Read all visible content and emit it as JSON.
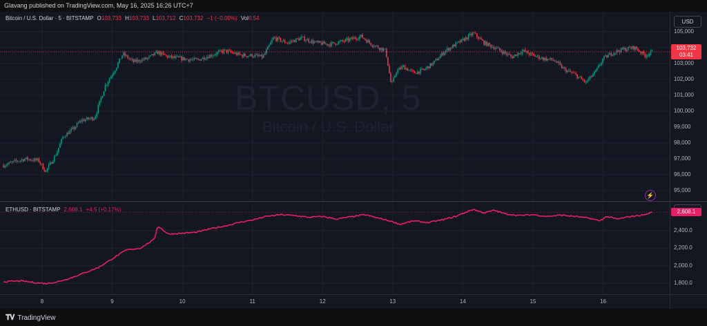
{
  "published_text": "Glavang published on TradingView.com, May 16, 2025 16:26 UTC+7",
  "watermark": {
    "symbol": "BTCUSD, 5",
    "description": "Bitcoin / U.S. Dollar"
  },
  "btc_legend": {
    "name": "Bitcoin / U.S. Dollar · 5 · BITSTAMP",
    "o_label": "O",
    "o": "103,733",
    "h_label": "H",
    "h": "103,733",
    "l_label": "L",
    "l": "103,712",
    "c_label": "C",
    "c": "103,732",
    "change": "−1 (−0.00%)",
    "vol_label": "Vol",
    "vol": "0.54"
  },
  "eth_legend": {
    "name": "ETHUSD · BITSTAMP",
    "last": "2,608.1",
    "change": "+4.5 (+0.17%)"
  },
  "currency_button": "USD",
  "btc_price_tag": {
    "price": "103,732",
    "countdown": "03:41"
  },
  "eth_price_tag": "2,608.1",
  "footer_brand": "TradingView",
  "colors": {
    "up": "#089981",
    "down": "#f23645",
    "eth_line": "#e91e63",
    "background": "#131722"
  },
  "chart_data": [
    {
      "type": "candlestick",
      "title": "Bitcoin / U.S. Dollar · 5 · BITSTAMP",
      "x_ticks": [
        "8",
        "9",
        "10",
        "11",
        "12",
        "13",
        "14",
        "15",
        "16"
      ],
      "y_ticks": [
        "105,000",
        "104,000",
        "103,000",
        "102,000",
        "101,000",
        "100,000",
        "99,000",
        "98,000",
        "97,000",
        "96,000",
        "95,000"
      ],
      "ylim": [
        94700,
        105900
      ],
      "last_price": 103732,
      "x": [
        7.45,
        7.75,
        7.95,
        8.05,
        8.2,
        8.3,
        8.45,
        8.55,
        8.75,
        8.9,
        9.05,
        9.15,
        9.3,
        9.5,
        9.65,
        9.8,
        10.0,
        10.2,
        10.4,
        10.6,
        10.85,
        11.0,
        11.15,
        11.3,
        11.5,
        11.7,
        11.9,
        12.1,
        12.3,
        12.55,
        12.7,
        12.9,
        12.98,
        13.05,
        13.15,
        13.3,
        13.45,
        13.6,
        13.75,
        13.9,
        14.05,
        14.15,
        14.3,
        14.5,
        14.7,
        14.85,
        15.0,
        15.15,
        15.3,
        15.45,
        15.6,
        15.75,
        15.9,
        16.0,
        16.15,
        16.3,
        16.45,
        16.6,
        16.7
      ],
      "values": [
        96600,
        97000,
        96900,
        96200,
        97300,
        98400,
        98900,
        99400,
        99600,
        101600,
        102700,
        103600,
        103100,
        103300,
        103700,
        103400,
        103300,
        103200,
        103500,
        103800,
        103500,
        103500,
        103400,
        104600,
        104300,
        104600,
        104300,
        104200,
        104400,
        104700,
        104200,
        103800,
        101600,
        102500,
        102800,
        102400,
        102600,
        103100,
        103800,
        104200,
        104600,
        104900,
        104300,
        103900,
        103400,
        103800,
        103500,
        103300,
        103200,
        102600,
        102300,
        101800,
        102500,
        103300,
        103700,
        103900,
        104000,
        103500,
        103732
      ]
    },
    {
      "type": "line",
      "title": "ETHUSD · BITSTAMP",
      "x_ticks": [
        "8",
        "9",
        "10",
        "11",
        "12",
        "13",
        "14",
        "15",
        "16"
      ],
      "y_ticks": [
        "2,400.0",
        "2,200.0",
        "2,000.0",
        "1,800.0"
      ],
      "ylim": [
        1710,
        2680
      ],
      "last_price": 2608.1,
      "x": [
        7.45,
        7.7,
        7.9,
        8.05,
        8.2,
        8.4,
        8.6,
        8.8,
        9.0,
        9.2,
        9.4,
        9.6,
        9.65,
        9.8,
        10.0,
        10.2,
        10.4,
        10.6,
        10.8,
        11.0,
        11.2,
        11.4,
        11.6,
        11.8,
        12.0,
        12.2,
        12.4,
        12.6,
        12.8,
        13.0,
        13.1,
        13.3,
        13.5,
        13.7,
        13.9,
        14.05,
        14.15,
        14.3,
        14.45,
        14.6,
        14.8,
        15.0,
        15.2,
        15.4,
        15.6,
        15.8,
        15.95,
        16.05,
        16.2,
        16.4,
        16.6,
        16.7
      ],
      "values": [
        1820,
        1830,
        1810,
        1800,
        1815,
        1860,
        1920,
        1980,
        2080,
        2180,
        2200,
        2300,
        2450,
        2360,
        2370,
        2380,
        2420,
        2450,
        2490,
        2520,
        2560,
        2580,
        2570,
        2550,
        2560,
        2530,
        2555,
        2580,
        2540,
        2500,
        2470,
        2510,
        2490,
        2520,
        2560,
        2610,
        2640,
        2600,
        2630,
        2590,
        2570,
        2580,
        2560,
        2575,
        2560,
        2540,
        2510,
        2560,
        2530,
        2560,
        2580,
        2608
      ]
    }
  ]
}
